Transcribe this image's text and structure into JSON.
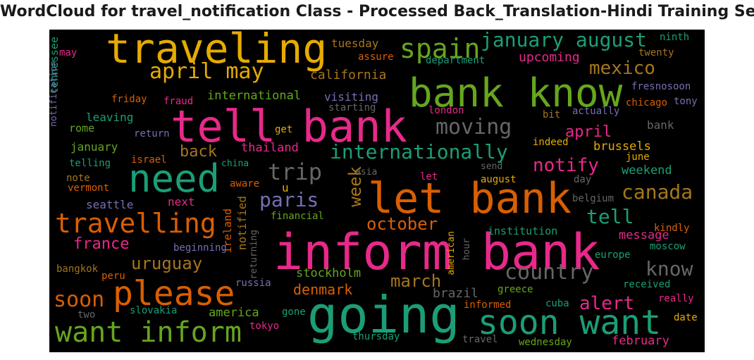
{
  "chart_data": {
    "type": "wordcloud",
    "title": "WordCloud for travel_notification Class - Processed Back_Translation-Hindi Training Set",
    "background": "#000000",
    "palette": [
      "#1b9e77",
      "#d95f02",
      "#7570b3",
      "#e7298a",
      "#66a61e",
      "#e6ab02",
      "#a6761d",
      "#666666"
    ],
    "words": [
      {
        "text": "inform bank",
        "color": "#e7298a",
        "orientation": "horizontal"
      },
      {
        "text": "going",
        "color": "#1b9e77",
        "orientation": "horizontal"
      },
      {
        "text": "tell bank",
        "color": "#e7298a",
        "orientation": "horizontal"
      },
      {
        "text": "let bank",
        "color": "#d95f02",
        "orientation": "horizontal"
      },
      {
        "text": "traveling",
        "color": "#e6ab02",
        "orientation": "horizontal"
      },
      {
        "text": "bank know",
        "color": "#66a61e",
        "orientation": "horizontal"
      },
      {
        "text": "soon want",
        "color": "#1b9e77",
        "orientation": "horizontal"
      },
      {
        "text": "need",
        "color": "#1b9e77",
        "orientation": "horizontal"
      },
      {
        "text": "please",
        "color": "#d95f02",
        "orientation": "horizontal"
      },
      {
        "text": "want inform",
        "color": "#66a61e",
        "orientation": "horizontal"
      },
      {
        "text": "travelling",
        "color": "#d95f02",
        "orientation": "horizontal"
      },
      {
        "text": "internationally",
        "color": "#1b9e77",
        "orientation": "horizontal"
      },
      {
        "text": "spain",
        "color": "#66a61e",
        "orientation": "horizontal"
      },
      {
        "text": "april may",
        "color": "#e6ab02",
        "orientation": "horizontal"
      },
      {
        "text": "january august",
        "color": "#1b9e77",
        "orientation": "horizontal"
      },
      {
        "text": "moving",
        "color": "#666666",
        "orientation": "horizontal"
      },
      {
        "text": "country",
        "color": "#666666",
        "orientation": "horizontal"
      },
      {
        "text": "trip",
        "color": "#666666",
        "orientation": "horizontal"
      },
      {
        "text": "canada",
        "color": "#a6761d",
        "orientation": "horizontal"
      },
      {
        "text": "know",
        "color": "#666666",
        "orientation": "horizontal"
      },
      {
        "text": "mexico",
        "color": "#a6761d",
        "orientation": "horizontal"
      },
      {
        "text": "notify",
        "color": "#e7298a",
        "orientation": "horizontal"
      },
      {
        "text": "paris",
        "color": "#7570b3",
        "orientation": "horizontal"
      },
      {
        "text": "tell",
        "color": "#1b9e77",
        "orientation": "horizontal"
      },
      {
        "text": "october",
        "color": "#d95f02",
        "orientation": "horizontal"
      },
      {
        "text": "alert",
        "color": "#e7298a",
        "orientation": "horizontal"
      },
      {
        "text": "soon",
        "color": "#d95f02",
        "orientation": "horizontal"
      },
      {
        "text": "uruguay",
        "color": "#a6761d",
        "orientation": "horizontal"
      },
      {
        "text": "march",
        "color": "#a6761d",
        "orientation": "horizontal"
      },
      {
        "text": "france",
        "color": "#e7298a",
        "orientation": "horizontal"
      },
      {
        "text": "back",
        "color": "#a6761d",
        "orientation": "horizontal"
      },
      {
        "text": "april",
        "color": "#e7298a",
        "orientation": "horizontal"
      },
      {
        "text": "week",
        "color": "#a6761d",
        "orientation": "vertical"
      },
      {
        "text": "denmark",
        "color": "#d95f02",
        "orientation": "horizontal"
      },
      {
        "text": "california",
        "color": "#a6761d",
        "orientation": "horizontal"
      },
      {
        "text": "upcoming",
        "color": "#e7298a",
        "orientation": "horizontal"
      },
      {
        "text": "brussels",
        "color": "#e6ab02",
        "orientation": "horizontal"
      },
      {
        "text": "thailand",
        "color": "#e7298a",
        "orientation": "horizontal"
      },
      {
        "text": "weekend",
        "color": "#1b9e77",
        "orientation": "horizontal"
      },
      {
        "text": "international",
        "color": "#66a61e",
        "orientation": "horizontal"
      },
      {
        "text": "stockholm",
        "color": "#66a61e",
        "orientation": "horizontal"
      },
      {
        "text": "tuesday",
        "color": "#a6761d",
        "orientation": "horizontal"
      },
      {
        "text": "visiting",
        "color": "#7570b3",
        "orientation": "horizontal"
      },
      {
        "text": "message",
        "color": "#e7298a",
        "orientation": "horizontal"
      },
      {
        "text": "february",
        "color": "#e7298a",
        "orientation": "horizontal"
      },
      {
        "text": "america",
        "color": "#66a61e",
        "orientation": "horizontal"
      },
      {
        "text": "leaving",
        "color": "#1b9e77",
        "orientation": "horizontal"
      },
      {
        "text": "seattle",
        "color": "#7570b3",
        "orientation": "horizontal"
      },
      {
        "text": "january",
        "color": "#66a61e",
        "orientation": "horizontal"
      },
      {
        "text": "rome",
        "color": "#66a61e",
        "orientation": "horizontal"
      },
      {
        "text": "next",
        "color": "#e7298a",
        "orientation": "horizontal"
      },
      {
        "text": "u",
        "color": "#e6ab02",
        "orientation": "horizontal"
      },
      {
        "text": "brazil",
        "color": "#666666",
        "orientation": "horizontal"
      },
      {
        "text": "bank",
        "color": "#666666",
        "orientation": "horizontal"
      },
      {
        "text": "tennessee",
        "color": "#1b9e77",
        "orientation": "vertical"
      },
      {
        "text": "notified",
        "color": "#a6761d",
        "orientation": "vertical"
      },
      {
        "text": "ireland",
        "color": "#d95f02",
        "orientation": "vertical"
      },
      {
        "text": "institution",
        "color": "#1b9e77",
        "orientation": "horizontal"
      },
      {
        "text": "beginning",
        "color": "#7570b3",
        "orientation": "horizontal"
      },
      {
        "text": "financial",
        "color": "#66a61e",
        "orientation": "horizontal"
      },
      {
        "text": "fresnosoon",
        "color": "#7570b3",
        "orientation": "horizontal"
      },
      {
        "text": "chicago",
        "color": "#d95f02",
        "orientation": "horizontal"
      },
      {
        "text": "tony",
        "color": "#7570b3",
        "orientation": "horizontal"
      },
      {
        "text": "indeed",
        "color": "#e6ab02",
        "orientation": "horizontal"
      },
      {
        "text": "june",
        "color": "#e6ab02",
        "orientation": "horizontal"
      },
      {
        "text": "actually",
        "color": "#7570b3",
        "orientation": "horizontal"
      },
      {
        "text": "bit",
        "color": "#a6761d",
        "orientation": "horizontal"
      },
      {
        "text": "london",
        "color": "#e7298a",
        "orientation": "horizontal"
      },
      {
        "text": "starting",
        "color": "#666666",
        "orientation": "horizontal"
      },
      {
        "text": "fraud",
        "color": "#e7298a",
        "orientation": "horizontal"
      },
      {
        "text": "friday",
        "color": "#d95f02",
        "orientation": "horizontal"
      },
      {
        "text": "return",
        "color": "#7570b3",
        "orientation": "horizontal"
      },
      {
        "text": "get",
        "color": "#e6ab02",
        "orientation": "horizontal"
      },
      {
        "text": "israel",
        "color": "#d95f02",
        "orientation": "horizontal"
      },
      {
        "text": "telling",
        "color": "#1b9e77",
        "orientation": "horizontal"
      },
      {
        "text": "note",
        "color": "#a6761d",
        "orientation": "horizontal"
      },
      {
        "text": "vermont",
        "color": "#d95f02",
        "orientation": "horizontal"
      },
      {
        "text": "china",
        "color": "#1b9e77",
        "orientation": "horizontal"
      },
      {
        "text": "aware",
        "color": "#d95f02",
        "orientation": "horizontal"
      },
      {
        "text": "asia",
        "color": "#666666",
        "orientation": "horizontal"
      },
      {
        "text": "let",
        "color": "#e7298a",
        "orientation": "horizontal"
      },
      {
        "text": "send",
        "color": "#666666",
        "orientation": "horizontal"
      },
      {
        "text": "august",
        "color": "#e6ab02",
        "orientation": "horizontal"
      },
      {
        "text": "day",
        "color": "#666666",
        "orientation": "horizontal"
      },
      {
        "text": "belgium",
        "color": "#666666",
        "orientation": "horizontal"
      },
      {
        "text": "kindly",
        "color": "#d95f02",
        "orientation": "horizontal"
      },
      {
        "text": "europe",
        "color": "#1b9e77",
        "orientation": "horizontal"
      },
      {
        "text": "moscow",
        "color": "#1b9e77",
        "orientation": "horizontal"
      },
      {
        "text": "received",
        "color": "#1b9e77",
        "orientation": "horizontal"
      },
      {
        "text": "really",
        "color": "#e7298a",
        "orientation": "horizontal"
      },
      {
        "text": "date",
        "color": "#e6ab02",
        "orientation": "horizontal"
      },
      {
        "text": "greece",
        "color": "#66a61e",
        "orientation": "horizontal"
      },
      {
        "text": "cuba",
        "color": "#1b9e77",
        "orientation": "horizontal"
      },
      {
        "text": "informed",
        "color": "#d95f02",
        "orientation": "horizontal"
      },
      {
        "text": "travel",
        "color": "#666666",
        "orientation": "horizontal"
      },
      {
        "text": "wednesday",
        "color": "#66a61e",
        "orientation": "horizontal"
      },
      {
        "text": "thursday",
        "color": "#1b9e77",
        "orientation": "horizontal"
      },
      {
        "text": "gone",
        "color": "#1b9e77",
        "orientation": "horizontal"
      },
      {
        "text": "tokyo",
        "color": "#e7298a",
        "orientation": "horizontal"
      },
      {
        "text": "slovakia",
        "color": "#1b9e77",
        "orientation": "horizontal"
      },
      {
        "text": "two",
        "color": "#666666",
        "orientation": "horizontal"
      },
      {
        "text": "bangkok",
        "color": "#a6761d",
        "orientation": "horizontal"
      },
      {
        "text": "peru",
        "color": "#d95f02",
        "orientation": "horizontal"
      },
      {
        "text": "russia",
        "color": "#7570b3",
        "orientation": "horizontal"
      },
      {
        "text": "returning",
        "color": "#666666",
        "orientation": "vertical"
      },
      {
        "text": "american",
        "color": "#e6ab02",
        "orientation": "vertical"
      },
      {
        "text": "hour",
        "color": "#666666",
        "orientation": "vertical"
      },
      {
        "text": "notification",
        "color": "#7570b3",
        "orientation": "vertical"
      },
      {
        "text": "may",
        "color": "#e7298a",
        "orientation": "horizontal"
      },
      {
        "text": "assure",
        "color": "#d95f02",
        "orientation": "horizontal"
      },
      {
        "text": "department",
        "color": "#1b9e77",
        "orientation": "horizontal"
      },
      {
        "text": "ninth",
        "color": "#1b9e77",
        "orientation": "horizontal"
      },
      {
        "text": "twenty",
        "color": "#a6761d",
        "orientation": "horizontal"
      }
    ]
  }
}
